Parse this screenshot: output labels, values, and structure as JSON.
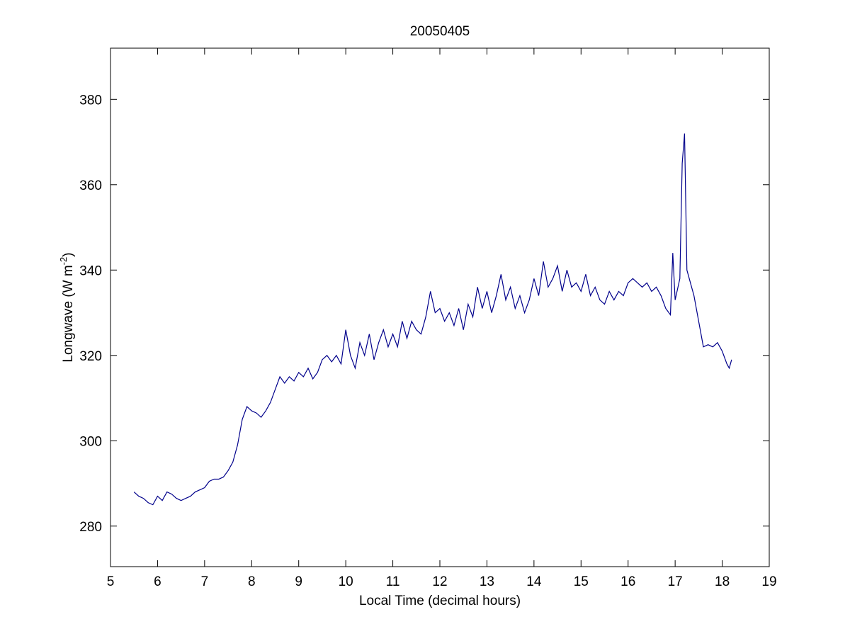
{
  "chart_data": {
    "type": "line",
    "title": "20050405",
    "xlabel": "Local Time (decimal hours)",
    "ylabel": {
      "text": "Longwave (W m",
      "superscript": "-2",
      "suffix": ")"
    },
    "xlim": [
      5,
      19
    ],
    "xticks": [
      5,
      6,
      7,
      8,
      9,
      10,
      11,
      12,
      13,
      14,
      15,
      16,
      17,
      18,
      19
    ],
    "ylim": [
      270.5,
      392
    ],
    "yticks": [
      280,
      300,
      320,
      340,
      360,
      380
    ],
    "grid": false,
    "x": [
      5.5,
      5.6,
      5.7,
      5.8,
      5.9,
      6.0,
      6.1,
      6.2,
      6.3,
      6.4,
      6.5,
      6.6,
      6.7,
      6.8,
      6.9,
      7.0,
      7.1,
      7.2,
      7.3,
      7.4,
      7.5,
      7.6,
      7.7,
      7.8,
      7.9,
      8.0,
      8.1,
      8.2,
      8.3,
      8.4,
      8.5,
      8.6,
      8.7,
      8.8,
      8.9,
      9.0,
      9.1,
      9.2,
      9.3,
      9.4,
      9.5,
      9.6,
      9.7,
      9.8,
      9.9,
      10.0,
      10.1,
      10.2,
      10.3,
      10.4,
      10.5,
      10.6,
      10.7,
      10.8,
      10.9,
      11.0,
      11.1,
      11.2,
      11.3,
      11.4,
      11.5,
      11.6,
      11.7,
      11.8,
      11.9,
      12.0,
      12.1,
      12.2,
      12.3,
      12.4,
      12.5,
      12.6,
      12.7,
      12.8,
      12.9,
      13.0,
      13.1,
      13.2,
      13.3,
      13.4,
      13.5,
      13.6,
      13.7,
      13.8,
      13.9,
      14.0,
      14.1,
      14.2,
      14.3,
      14.4,
      14.5,
      14.6,
      14.7,
      14.8,
      14.9,
      15.0,
      15.1,
      15.2,
      15.3,
      15.4,
      15.5,
      15.6,
      15.7,
      15.8,
      15.9,
      16.0,
      16.1,
      16.2,
      16.3,
      16.4,
      16.5,
      16.6,
      16.7,
      16.8,
      16.9,
      16.95,
      17.0,
      17.1,
      17.15,
      17.2,
      17.25,
      17.3,
      17.4,
      17.5,
      17.6,
      17.7,
      17.8,
      17.9,
      18.0,
      18.1,
      18.15,
      18.2
    ],
    "series": [
      {
        "name": "Longwave",
        "color": "#00008b",
        "values": [
          288,
          287,
          286.5,
          285.5,
          285,
          287,
          286,
          288,
          287.5,
          286.5,
          286,
          286.5,
          287,
          288,
          288.5,
          289,
          290.5,
          291,
          291,
          291.5,
          293,
          295,
          299,
          305,
          308,
          307,
          306.5,
          305.5,
          307,
          309,
          312,
          315,
          313.5,
          315,
          314,
          316,
          315,
          317,
          314.5,
          316,
          319,
          320,
          318.5,
          320,
          318,
          326,
          320,
          317,
          323,
          320,
          325,
          319,
          323,
          326,
          322,
          325,
          322,
          328,
          324,
          328,
          326,
          325,
          329,
          335,
          330,
          331,
          328,
          330,
          327,
          331,
          326,
          332,
          329,
          336,
          331,
          335,
          330,
          334,
          339,
          333,
          336,
          331,
          334,
          330,
          333,
          338,
          334,
          342,
          336,
          338,
          341,
          335,
          340,
          336,
          337,
          335,
          339,
          334,
          336,
          333,
          332,
          335,
          333,
          335,
          334,
          337,
          338,
          337,
          336,
          337,
          335,
          336,
          334,
          331,
          329.5,
          344,
          333,
          338,
          365,
          372,
          340,
          338,
          334,
          328,
          322,
          322.5,
          322,
          323,
          321,
          318,
          317,
          319
        ]
      }
    ]
  }
}
